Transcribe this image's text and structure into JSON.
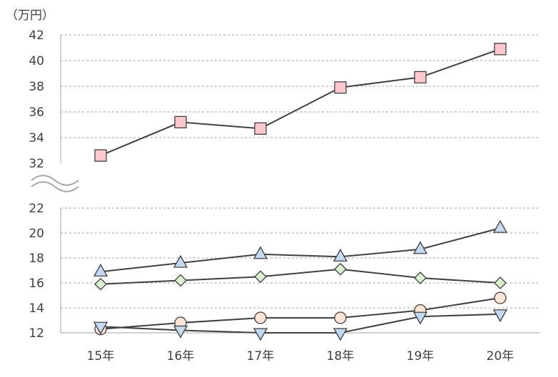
{
  "chart_data": {
    "type": "line",
    "unit_label": "（万円）",
    "categories": [
      "15年",
      "16年",
      "17年",
      "18年",
      "19年",
      "20年"
    ],
    "axis_break": true,
    "upper_panel": {
      "ylim": [
        32,
        42
      ],
      "yticks": [
        "32",
        "34",
        "36",
        "38",
        "40",
        "42"
      ]
    },
    "lower_panel": {
      "ylim": [
        12,
        22
      ],
      "yticks": [
        "12",
        "14",
        "16",
        "18",
        "20",
        "22"
      ]
    },
    "grid": true,
    "series": [
      {
        "panel": "upper",
        "marker": "square",
        "color": "#ffc7ce",
        "values": [
          32.6,
          35.2,
          34.7,
          37.9,
          38.7,
          40.9
        ]
      },
      {
        "panel": "lower",
        "marker": "triangle-up",
        "color": "#c5d9f1",
        "values": [
          16.9,
          17.6,
          18.3,
          18.1,
          18.7,
          20.4
        ]
      },
      {
        "panel": "lower",
        "marker": "diamond",
        "color": "#d8f0d0",
        "values": [
          15.9,
          16.2,
          16.5,
          17.1,
          16.4,
          16.0
        ]
      },
      {
        "panel": "lower",
        "marker": "circle",
        "color": "#fce4d6",
        "values": [
          12.3,
          12.8,
          13.2,
          13.2,
          13.8,
          14.8
        ]
      },
      {
        "panel": "lower",
        "marker": "triangle-down",
        "color": "#c5d9f1",
        "values": [
          12.5,
          12.2,
          12.0,
          12.0,
          13.3,
          13.5
        ]
      }
    ]
  }
}
